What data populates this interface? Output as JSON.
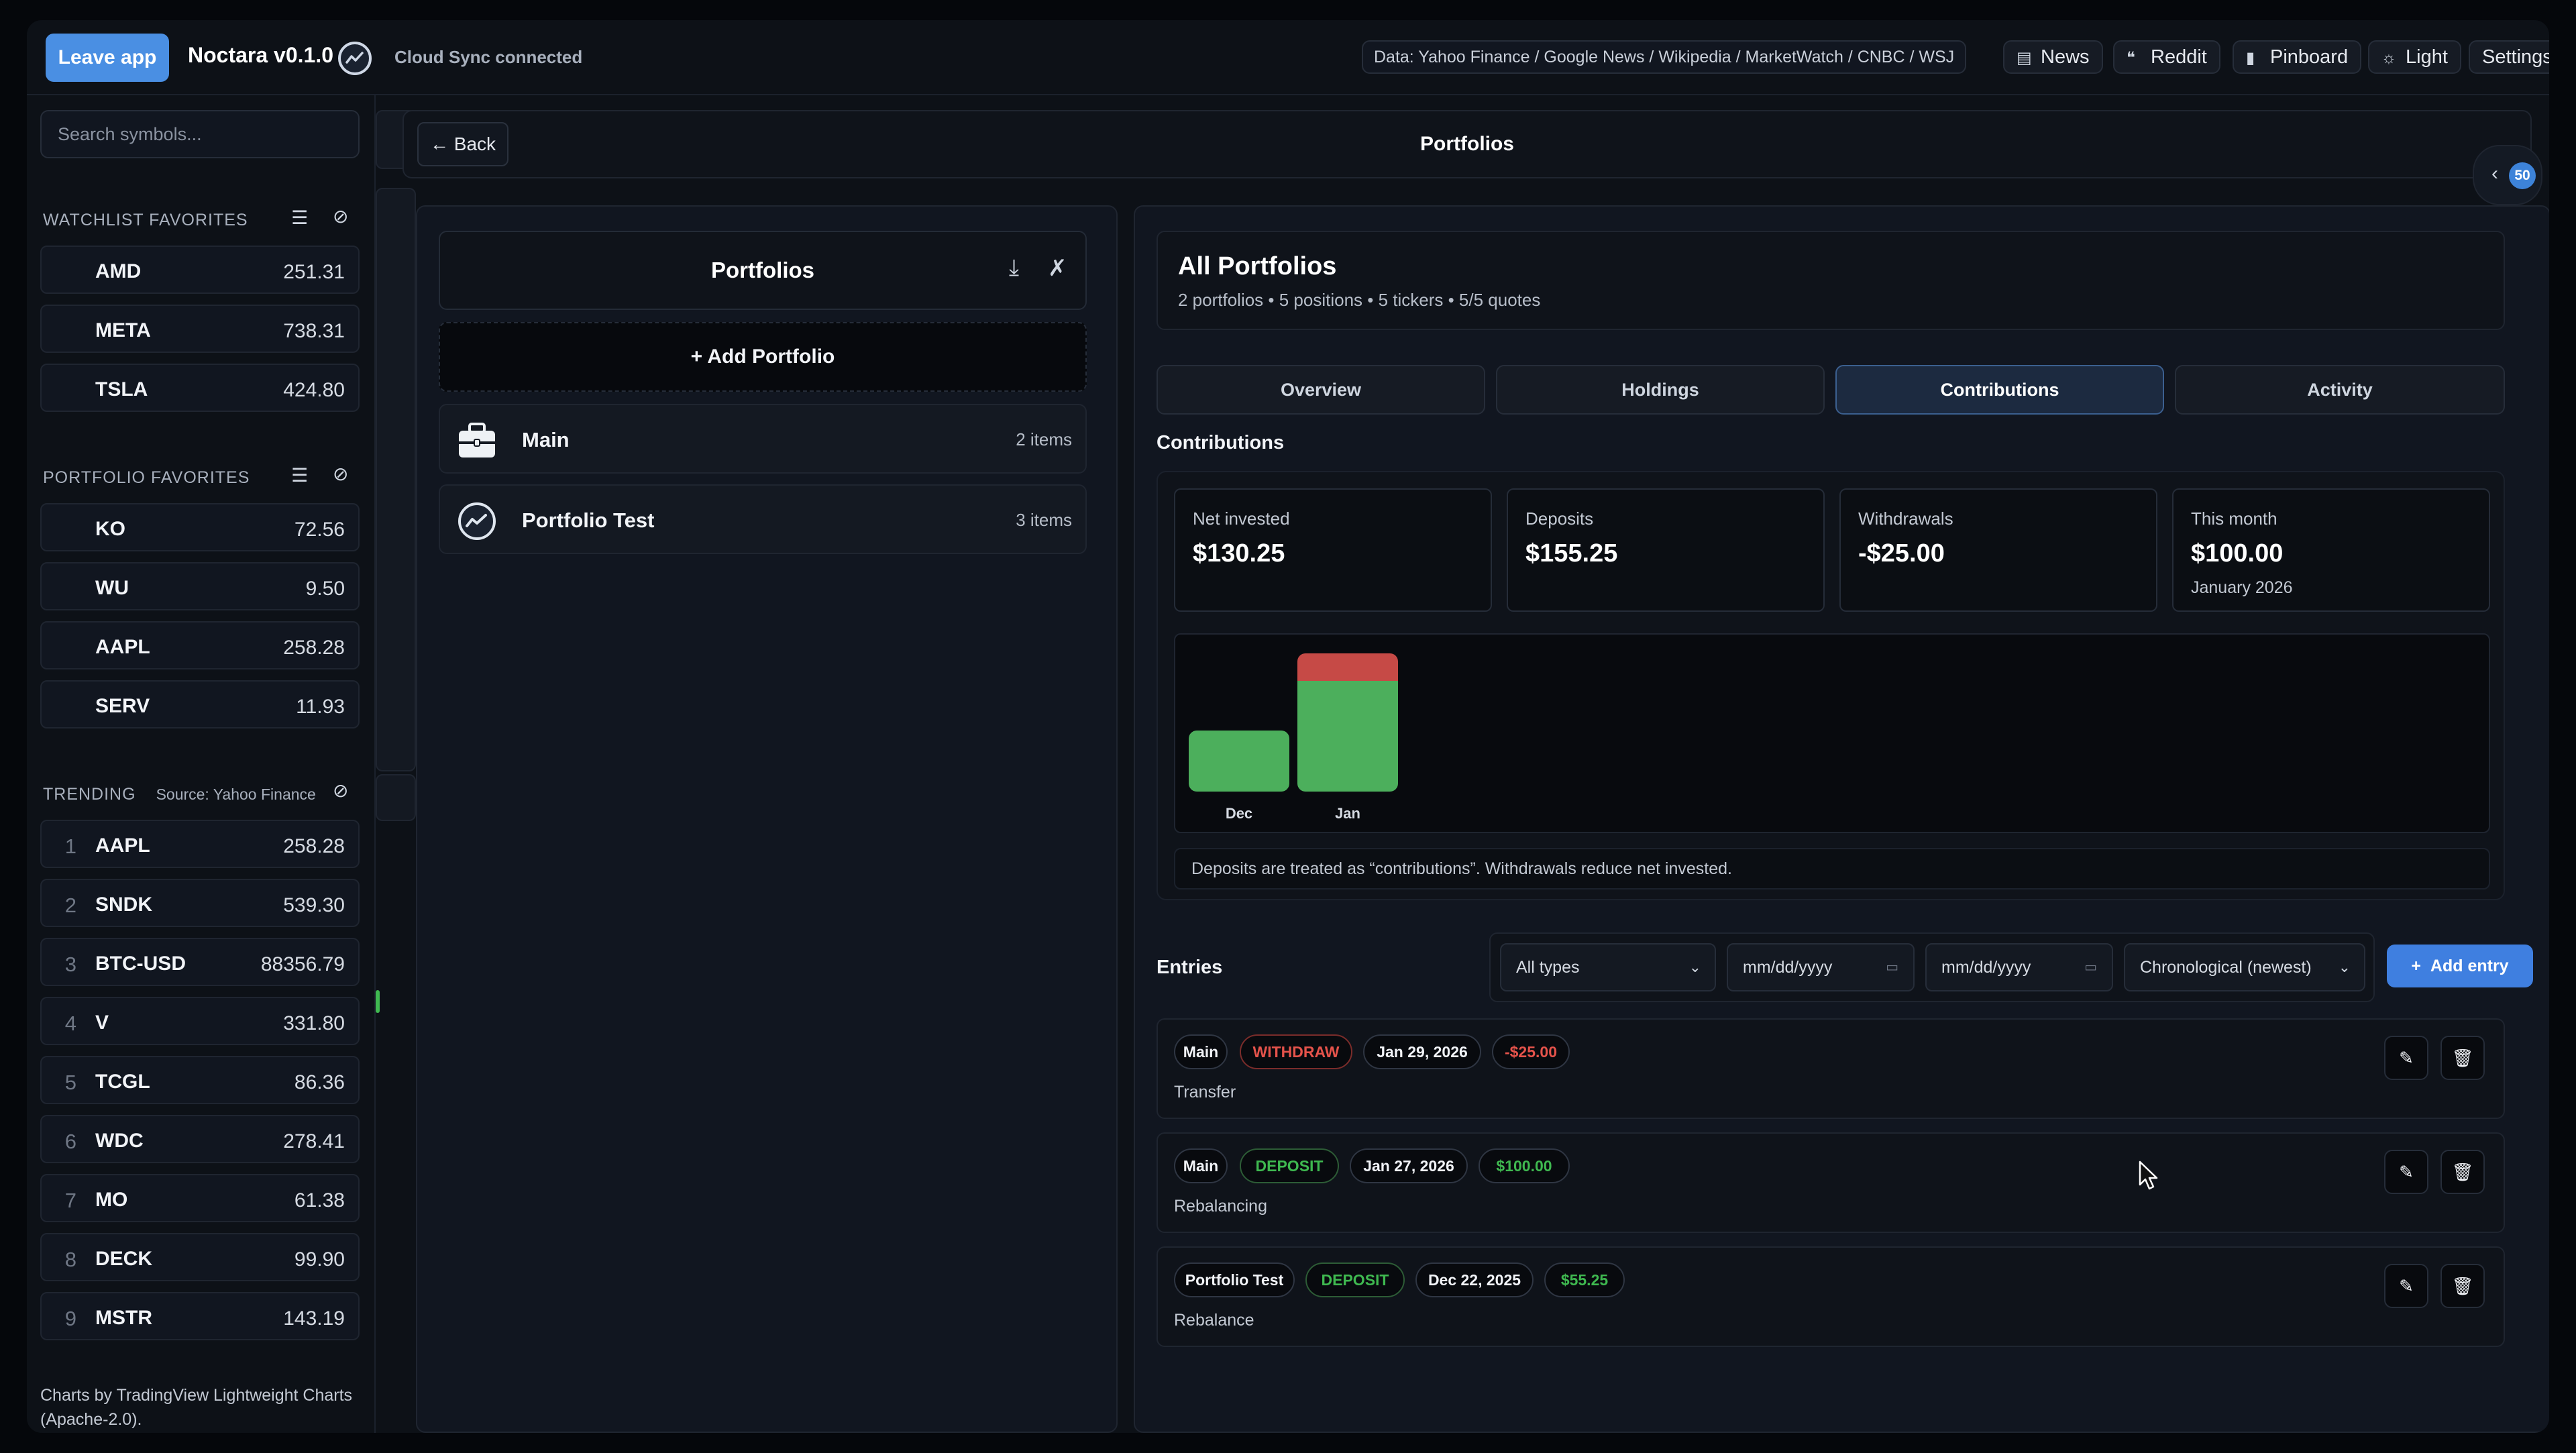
{
  "topbar": {
    "leave_label": "Leave app",
    "app_title": "Noctara v0.1.0",
    "sync_status": "Cloud Sync connected",
    "data_sources": "Data: Yahoo Finance / Google News / Wikipedia / MarketWatch / CNBC / WSJ",
    "nav": [
      {
        "label": "News",
        "icon": "newspaper-icon"
      },
      {
        "label": "Reddit",
        "icon": "chat-bubbles-icon"
      },
      {
        "label": "Pinboard",
        "icon": "bookmark-icon"
      },
      {
        "label": "Light",
        "icon": "sun-icon"
      },
      {
        "label": "Settings",
        "icon": ""
      }
    ]
  },
  "sidebar": {
    "search_placeholder": "Search symbols...",
    "watchlist": {
      "title": "WATCHLIST FAVORITES",
      "items": [
        {
          "symbol": "AMD",
          "price": "251.31"
        },
        {
          "symbol": "META",
          "price": "738.31"
        },
        {
          "symbol": "TSLA",
          "price": "424.80"
        }
      ]
    },
    "portfolio_favorites": {
      "title": "PORTFOLIO FAVORITES",
      "items": [
        {
          "symbol": "KO",
          "price": "72.56"
        },
        {
          "symbol": "WU",
          "price": "9.50"
        },
        {
          "symbol": "AAPL",
          "price": "258.28"
        },
        {
          "symbol": "SERV",
          "price": "11.93"
        }
      ]
    },
    "trending": {
      "title": "TRENDING",
      "source": "Source: Yahoo Finance",
      "items": [
        {
          "rank": "1",
          "symbol": "AAPL",
          "price": "258.28"
        },
        {
          "rank": "2",
          "symbol": "SNDK",
          "price": "539.30"
        },
        {
          "rank": "3",
          "symbol": "BTC-USD",
          "price": "88356.79"
        },
        {
          "rank": "4",
          "symbol": "V",
          "price": "331.80"
        },
        {
          "rank": "5",
          "symbol": "TCGL",
          "price": "86.36"
        },
        {
          "rank": "6",
          "symbol": "WDC",
          "price": "278.41"
        },
        {
          "rank": "7",
          "symbol": "MO",
          "price": "61.38"
        },
        {
          "rank": "8",
          "symbol": "DECK",
          "price": "99.90"
        },
        {
          "rank": "9",
          "symbol": "MSTR",
          "price": "143.19"
        }
      ]
    },
    "credits": "Charts by TradingView Lightweight Charts (Apache-2.0)."
  },
  "main": {
    "back_label": "← Back",
    "title": "Portfolios",
    "collapse_badge": "50"
  },
  "portfolios_panel": {
    "title": "Portfolios",
    "add_label": "Add Portfolio",
    "items": [
      {
        "name": "Main",
        "count": "2 items",
        "icon": "briefcase-icon"
      },
      {
        "name": "Portfolio Test",
        "count": "3 items",
        "icon": "chart-circle-icon"
      }
    ]
  },
  "detail": {
    "title": "All Portfolios",
    "subtitle": "2 portfolios • 5 positions • 5 tickers • 5/5 quotes",
    "tabs": [
      "Overview",
      "Holdings",
      "Contributions",
      "Activity"
    ],
    "active_tab": "Contributions",
    "section_title": "Contributions",
    "stats": [
      {
        "label": "Net invested",
        "value": "$130.25",
        "note": ""
      },
      {
        "label": "Deposits",
        "value": "$155.25",
        "note": ""
      },
      {
        "label": "Withdrawals",
        "value": "-$25.00",
        "note": ""
      },
      {
        "label": "This month",
        "value": "$100.00",
        "note": "January 2026"
      }
    ],
    "chart_note": "Deposits are treated as “contributions”. Withdrawals reduce net invested.",
    "entries_title": "Entries",
    "filters": {
      "type": "All types",
      "date_from": "mm/dd/yyyy",
      "date_to": "mm/dd/yyyy",
      "sort": "Chronological (newest)"
    },
    "add_entry_label": "Add entry",
    "entries": [
      {
        "portfolio": "Main",
        "type": "WITHDRAW",
        "date": "Jan 29, 2026",
        "amount": "-$25.00",
        "note": "Transfer"
      },
      {
        "portfolio": "Main",
        "type": "DEPOSIT",
        "date": "Jan 27, 2026",
        "amount": "$100.00",
        "note": "Rebalancing"
      },
      {
        "portfolio": "Portfolio Test",
        "type": "DEPOSIT",
        "date": "Dec 22, 2025",
        "amount": "$55.25",
        "note": "Rebalance"
      }
    ]
  },
  "colors": {
    "accent": "#4a8fe3",
    "deposit": "#4caf5c",
    "withdraw": "#c64a46"
  },
  "chart_data": {
    "type": "bar",
    "categories": [
      "Dec",
      "Jan"
    ],
    "series": [
      {
        "name": "Deposits",
        "values": [
          55.25,
          100
        ]
      },
      {
        "name": "Withdrawals",
        "values": [
          0,
          25
        ]
      }
    ],
    "stacked": true,
    "title": "",
    "xlabel": "",
    "ylabel": "",
    "ylim": [
      0,
      125
    ],
    "grid": false,
    "legend": "none"
  }
}
